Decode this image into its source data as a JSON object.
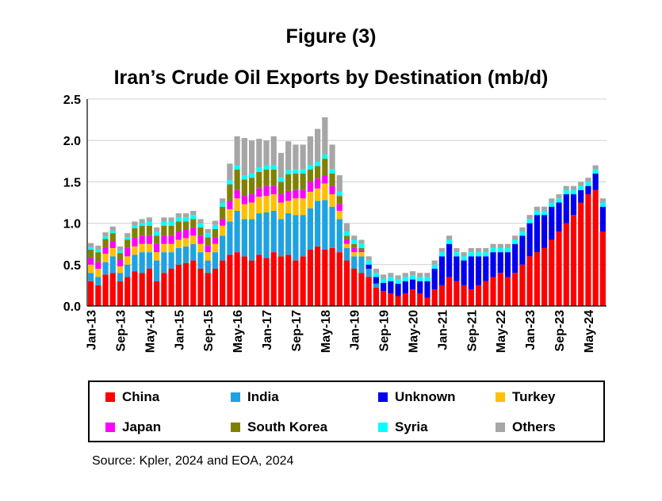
{
  "figure_label": "Figure (3)",
  "source": "Source: Kpler, 2024 and EOA, 2024",
  "chart_data": {
    "type": "bar",
    "stacked": true,
    "title": "Iran’s Crude Oil Exports by Destination (mb/d)",
    "xlabel": "",
    "ylabel": "",
    "ylim": [
      0,
      2.5
    ],
    "y_ticks": [
      "0.0",
      "0.5",
      "1.0",
      "1.5",
      "2.0",
      "2.5"
    ],
    "grid": true,
    "legend_position": "bottom",
    "x_tick_labels": [
      "Jan-13",
      "Sep-13",
      "May-14",
      "Jan-15",
      "Sep-15",
      "May-16",
      "Jan-17",
      "Sep-17",
      "May-18",
      "Jan-19",
      "Sep-19",
      "May-20",
      "Jan-21",
      "Sep-21",
      "May-22",
      "Jan-23",
      "Sep-23",
      "May-24"
    ],
    "categories": [
      "Jan-13",
      "Mar-13",
      "May-13",
      "Jul-13",
      "Sep-13",
      "Nov-13",
      "Jan-14",
      "Mar-14",
      "May-14",
      "Jul-14",
      "Sep-14",
      "Nov-14",
      "Jan-15",
      "Mar-15",
      "May-15",
      "Jul-15",
      "Sep-15",
      "Nov-15",
      "Jan-16",
      "Mar-16",
      "May-16",
      "Jul-16",
      "Sep-16",
      "Nov-16",
      "Jan-17",
      "Mar-17",
      "May-17",
      "Jul-17",
      "Sep-17",
      "Nov-17",
      "Jan-18",
      "Mar-18",
      "May-18",
      "Jul-18",
      "Sep-18",
      "Nov-18",
      "Jan-19",
      "Mar-19",
      "May-19",
      "Jul-19",
      "Sep-19",
      "Nov-19",
      "Jan-20",
      "Mar-20",
      "May-20",
      "Jul-20",
      "Sep-20",
      "Nov-20",
      "Jan-21",
      "Mar-21",
      "May-21",
      "Jul-21",
      "Sep-21",
      "Nov-21",
      "Jan-22",
      "Mar-22",
      "May-22",
      "Jul-22",
      "Sep-22",
      "Nov-22",
      "Jan-23",
      "Mar-23",
      "May-23",
      "Jul-23",
      "Sep-23",
      "Nov-23",
      "Jan-24",
      "Mar-24",
      "May-24",
      "Jul-24",
      "Sep-24"
    ],
    "series": [
      {
        "name": "China",
        "color": "#FF0000",
        "values": [
          0.3,
          0.25,
          0.38,
          0.4,
          0.3,
          0.35,
          0.42,
          0.4,
          0.45,
          0.3,
          0.4,
          0.45,
          0.5,
          0.52,
          0.55,
          0.45,
          0.4,
          0.45,
          0.55,
          0.62,
          0.65,
          0.6,
          0.55,
          0.62,
          0.58,
          0.65,
          0.6,
          0.62,
          0.55,
          0.6,
          0.68,
          0.72,
          0.68,
          0.7,
          0.65,
          0.55,
          0.45,
          0.4,
          0.35,
          0.22,
          0.18,
          0.15,
          0.12,
          0.15,
          0.2,
          0.15,
          0.1,
          0.2,
          0.25,
          0.35,
          0.3,
          0.25,
          0.2,
          0.25,
          0.3,
          0.35,
          0.4,
          0.35,
          0.4,
          0.5,
          0.6,
          0.65,
          0.7,
          0.8,
          0.9,
          1.0,
          1.1,
          1.25,
          1.35,
          1.4,
          0.9
        ]
      },
      {
        "name": "India",
        "color": "#1FA3E0",
        "values": [
          0.1,
          0.1,
          0.15,
          0.2,
          0.1,
          0.15,
          0.2,
          0.25,
          0.2,
          0.25,
          0.25,
          0.2,
          0.2,
          0.2,
          0.2,
          0.2,
          0.15,
          0.2,
          0.3,
          0.4,
          0.5,
          0.45,
          0.5,
          0.5,
          0.55,
          0.5,
          0.45,
          0.5,
          0.55,
          0.5,
          0.5,
          0.55,
          0.6,
          0.5,
          0.4,
          0.15,
          0.15,
          0.2,
          0.1,
          0.05,
          0,
          0,
          0,
          0,
          0,
          0,
          0,
          0,
          0,
          0,
          0,
          0,
          0,
          0,
          0,
          0,
          0,
          0,
          0,
          0,
          0,
          0,
          0,
          0,
          0,
          0,
          0,
          0,
          0,
          0,
          0
        ]
      },
      {
        "name": "Unknown",
        "color": "#0000EE",
        "values": [
          0,
          0,
          0,
          0,
          0,
          0,
          0,
          0,
          0,
          0,
          0,
          0,
          0,
          0,
          0,
          0,
          0,
          0,
          0,
          0,
          0,
          0,
          0,
          0,
          0,
          0,
          0,
          0,
          0,
          0,
          0,
          0,
          0,
          0,
          0,
          0,
          0,
          0,
          0.05,
          0.08,
          0.1,
          0.15,
          0.15,
          0.15,
          0.12,
          0.15,
          0.2,
          0.25,
          0.35,
          0.4,
          0.3,
          0.3,
          0.4,
          0.35,
          0.3,
          0.3,
          0.25,
          0.3,
          0.35,
          0.35,
          0.4,
          0.45,
          0.4,
          0.4,
          0.35,
          0.35,
          0.25,
          0.15,
          0.1,
          0.2,
          0.3
        ]
      },
      {
        "name": "Turkey",
        "color": "#FFC000",
        "values": [
          0.1,
          0.1,
          0.1,
          0.1,
          0.08,
          0.1,
          0.1,
          0.1,
          0.1,
          0.1,
          0.1,
          0.1,
          0.1,
          0.1,
          0.1,
          0.1,
          0.1,
          0.1,
          0.12,
          0.15,
          0.15,
          0.18,
          0.2,
          0.2,
          0.2,
          0.2,
          0.2,
          0.15,
          0.2,
          0.2,
          0.2,
          0.15,
          0.2,
          0.15,
          0.1,
          0.05,
          0.05,
          0.05,
          0,
          0,
          0,
          0,
          0,
          0,
          0,
          0,
          0,
          0,
          0,
          0,
          0,
          0,
          0,
          0,
          0,
          0,
          0,
          0,
          0,
          0,
          0,
          0,
          0,
          0,
          0,
          0,
          0,
          0,
          0,
          0,
          0
        ]
      },
      {
        "name": "Japan",
        "color": "#FF00FF",
        "values": [
          0.08,
          0.08,
          0.08,
          0.08,
          0.08,
          0.1,
          0.1,
          0.1,
          0.1,
          0.1,
          0.1,
          0.1,
          0.1,
          0.1,
          0.1,
          0.1,
          0.08,
          0.08,
          0.08,
          0.1,
          0.1,
          0.1,
          0.1,
          0.1,
          0.12,
          0.1,
          0.1,
          0.12,
          0.1,
          0.1,
          0.12,
          0.12,
          0.1,
          0.1,
          0.08,
          0.05,
          0.05,
          0.02,
          0,
          0,
          0,
          0,
          0,
          0,
          0,
          0,
          0,
          0,
          0,
          0,
          0,
          0,
          0,
          0,
          0,
          0,
          0,
          0,
          0,
          0,
          0,
          0,
          0,
          0,
          0,
          0,
          0,
          0,
          0,
          0,
          0
        ]
      },
      {
        "name": "South Korea",
        "color": "#808000",
        "values": [
          0.1,
          0.12,
          0.1,
          0.1,
          0.08,
          0.1,
          0.12,
          0.12,
          0.12,
          0.1,
          0.12,
          0.12,
          0.12,
          0.1,
          0.1,
          0.1,
          0.1,
          0.1,
          0.15,
          0.2,
          0.25,
          0.2,
          0.2,
          0.2,
          0.2,
          0.2,
          0.15,
          0.2,
          0.2,
          0.2,
          0.15,
          0.15,
          0.2,
          0.15,
          0.1,
          0.05,
          0.05,
          0.03,
          0,
          0,
          0,
          0,
          0,
          0,
          0,
          0,
          0,
          0,
          0,
          0,
          0,
          0,
          0,
          0,
          0,
          0,
          0,
          0,
          0,
          0,
          0,
          0,
          0,
          0,
          0,
          0,
          0,
          0,
          0,
          0,
          0
        ]
      },
      {
        "name": "Syria",
        "color": "#00FFFF",
        "values": [
          0.03,
          0.03,
          0.03,
          0.03,
          0.03,
          0.03,
          0.03,
          0.03,
          0.05,
          0.05,
          0.05,
          0.05,
          0.05,
          0.05,
          0.05,
          0.05,
          0.05,
          0.05,
          0.05,
          0.05,
          0.05,
          0.05,
          0.05,
          0.05,
          0.05,
          0.05,
          0.05,
          0.05,
          0.05,
          0.05,
          0.05,
          0.05,
          0.05,
          0.05,
          0.05,
          0.05,
          0.05,
          0.05,
          0.05,
          0.05,
          0.05,
          0.05,
          0.05,
          0.05,
          0.05,
          0.05,
          0.05,
          0.05,
          0.05,
          0.05,
          0.05,
          0.05,
          0.05,
          0.05,
          0.05,
          0.05,
          0.05,
          0.05,
          0.05,
          0.05,
          0.05,
          0.05,
          0.05,
          0.05,
          0.05,
          0.05,
          0.05,
          0.05,
          0.05,
          0.05,
          0.05
        ]
      },
      {
        "name": "Others",
        "color": "#A6A6A6",
        "values": [
          0.05,
          0.05,
          0.05,
          0.05,
          0.05,
          0.05,
          0.05,
          0.05,
          0.05,
          0.05,
          0.05,
          0.05,
          0.05,
          0.05,
          0.05,
          0.05,
          0.05,
          0.05,
          0.05,
          0.2,
          0.35,
          0.45,
          0.4,
          0.35,
          0.3,
          0.35,
          0.3,
          0.35,
          0.3,
          0.3,
          0.35,
          0.4,
          0.45,
          0.3,
          0.2,
          0.1,
          0.05,
          0.05,
          0.05,
          0.05,
          0.05,
          0.05,
          0.05,
          0.05,
          0.05,
          0.05,
          0.05,
          0.05,
          0.05,
          0.05,
          0.05,
          0.05,
          0.05,
          0.05,
          0.05,
          0.05,
          0.05,
          0.05,
          0.05,
          0.05,
          0.05,
          0.05,
          0.05,
          0.05,
          0.05,
          0.05,
          0.05,
          0.05,
          0.05,
          0.05,
          0.05
        ]
      }
    ]
  }
}
